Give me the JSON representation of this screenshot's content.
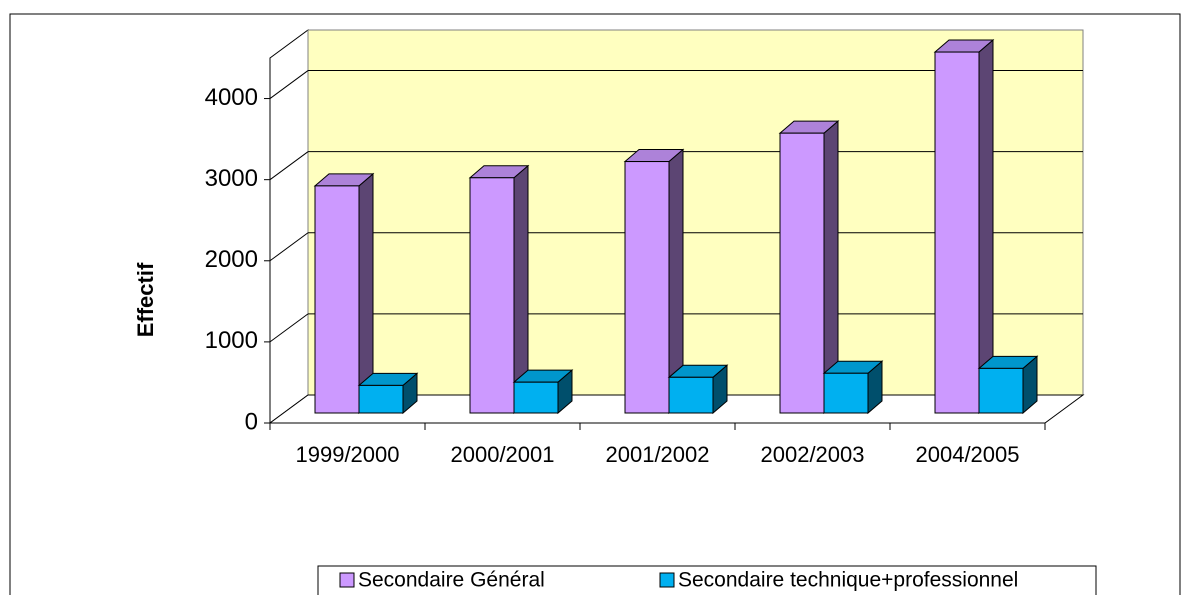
{
  "chart_data": {
    "type": "bar3d",
    "ylabel": "Effectif",
    "categories": [
      "1999/2000",
      "2000/2001",
      "2001/2002",
      "2002/2003",
      "2004/2005"
    ],
    "series": [
      {
        "name": "Secondaire Général",
        "color": "#cc99ff",
        "values": [
          2800,
          2900,
          3100,
          3450,
          4450
        ]
      },
      {
        "name": "Secondaire technique+professionnel",
        "color": "#00b0f0",
        "values": [
          340,
          380,
          440,
          490,
          550
        ]
      }
    ],
    "ylim": [
      0,
      4500
    ],
    "yticks": [
      0,
      1000,
      2000,
      3000,
      4000
    ],
    "grid": true,
    "legend": "bottom"
  }
}
